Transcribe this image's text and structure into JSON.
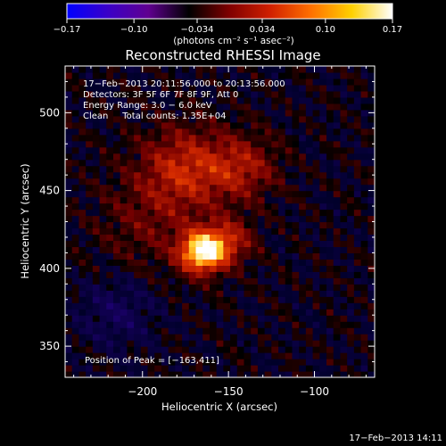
{
  "chart_data": {
    "type": "heatmap",
    "title": "Reconstructed RHESSI Image",
    "xlabel": "Heliocentric X (arcsec)",
    "ylabel": "Heliocentric Y (arcsec)",
    "xlim": [
      -245,
      -65
    ],
    "ylim": [
      330,
      530
    ],
    "xticks": [
      -200,
      -150,
      -100
    ],
    "yticks": [
      350,
      400,
      450,
      500
    ],
    "xtick_labels": [
      "−200",
      "−150",
      "−100"
    ],
    "ytick_labels": [
      "350",
      "400",
      "450",
      "500"
    ],
    "colorbar": {
      "ticks": [
        -0.17,
        -0.1,
        -0.034,
        0.034,
        0.1,
        0.17
      ],
      "tick_labels": [
        "−0.17",
        "−0.10",
        "−0.034",
        "0.034",
        "0.10",
        "0.17"
      ],
      "label": "(photons cm⁻² s⁻¹ asec⁻²)",
      "colors": [
        "#0000ff",
        "#3a00c8",
        "#600090",
        "#000000",
        "#800000",
        "#d02000",
        "#ff7000",
        "#ffd000",
        "#ffffff"
      ]
    },
    "annotations": [
      "17−Feb−2013 20:11:56.000 to 20:13:56.000",
      "Detectors: 3F 5F 6F 7F 8F 9F, Att 0",
      "Energy Range: 3.0 − 6.0 keV",
      "Clean     Total counts: 1.35E+04"
    ],
    "peak_label": "Position of Peak = [−163,411]",
    "peak": {
      "x": -163,
      "y": 411
    },
    "sources": [
      {
        "x": -165,
        "y": 411,
        "amp": 0.17,
        "sigma": 9
      },
      {
        "x": -150,
        "y": 418,
        "amp": 0.06,
        "sigma": 10
      },
      {
        "x": -175,
        "y": 465,
        "amp": 0.07,
        "sigma": 18
      },
      {
        "x": -142,
        "y": 465,
        "amp": 0.055,
        "sigma": 14
      },
      {
        "x": -195,
        "y": 430,
        "amp": 0.03,
        "sigma": 22
      },
      {
        "x": -215,
        "y": 372,
        "amp": -0.035,
        "sigma": 16
      }
    ]
  },
  "footer": {
    "timestamp": "17−Feb−2013 14:11"
  }
}
